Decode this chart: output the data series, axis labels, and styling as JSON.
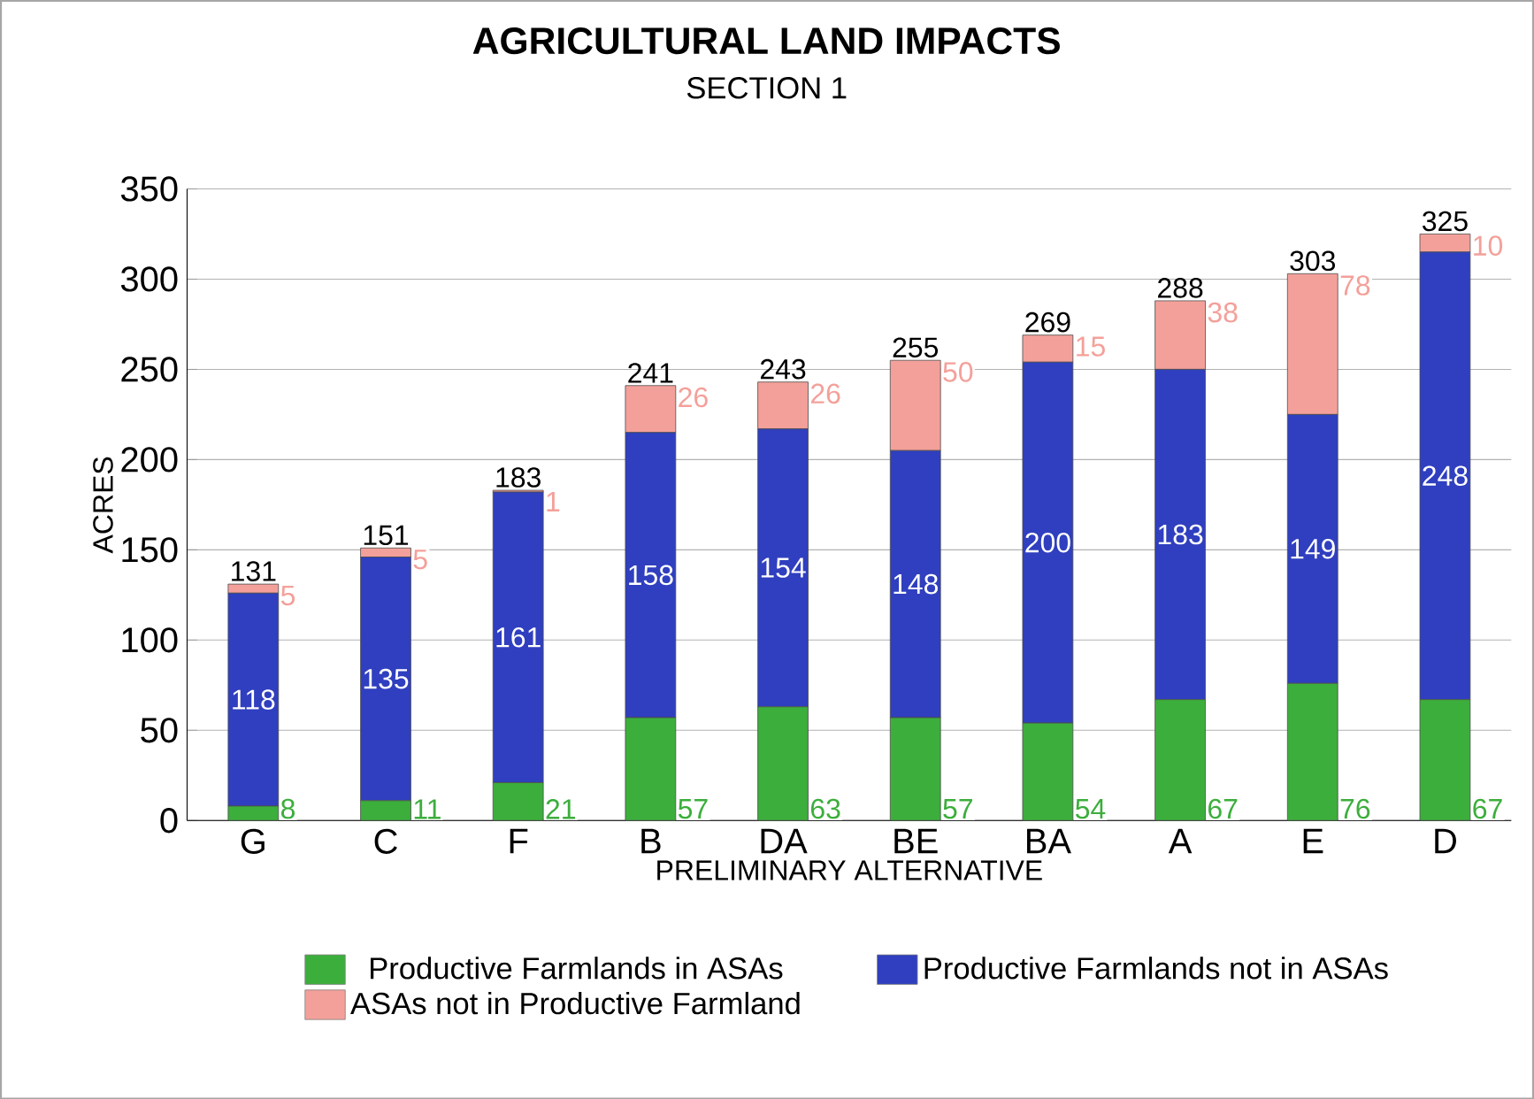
{
  "chart_data": {
    "type": "bar",
    "stacked": true,
    "title": "AGRICULTURAL LAND IMPACTS",
    "subtitle": "SECTION 1",
    "xlabel": "PRELIMINARY ALTERNATIVE",
    "ylabel": "ACRES",
    "categories": [
      "G",
      "C",
      "F",
      "B",
      "DA",
      "BE",
      "BA",
      "A",
      "E",
      "D"
    ],
    "series": [
      {
        "name": "Productive Farmlands in ASAs",
        "color": "#3cae3c",
        "values": [
          8,
          11,
          21,
          57,
          63,
          57,
          54,
          67,
          76,
          67
        ]
      },
      {
        "name": "Productive Farmlands not in ASAs",
        "color": "#2f3fbf",
        "values": [
          118,
          135,
          161,
          158,
          154,
          148,
          200,
          183,
          149,
          248
        ]
      },
      {
        "name": "ASAs not in Productive Farmland",
        "color": "#f4a09a",
        "values": [
          5,
          5,
          1,
          26,
          26,
          50,
          15,
          38,
          78,
          10
        ]
      }
    ],
    "totals": [
      "131",
      "151",
      "183",
      "241",
      "243",
      "255",
      "269",
      "288",
      "303",
      "325"
    ],
    "data_labels": true,
    "ylim": [
      0,
      350
    ],
    "yticks": [
      0,
      50,
      100,
      150,
      200,
      250,
      300,
      350
    ],
    "grid": "y",
    "legend": "bottom"
  }
}
